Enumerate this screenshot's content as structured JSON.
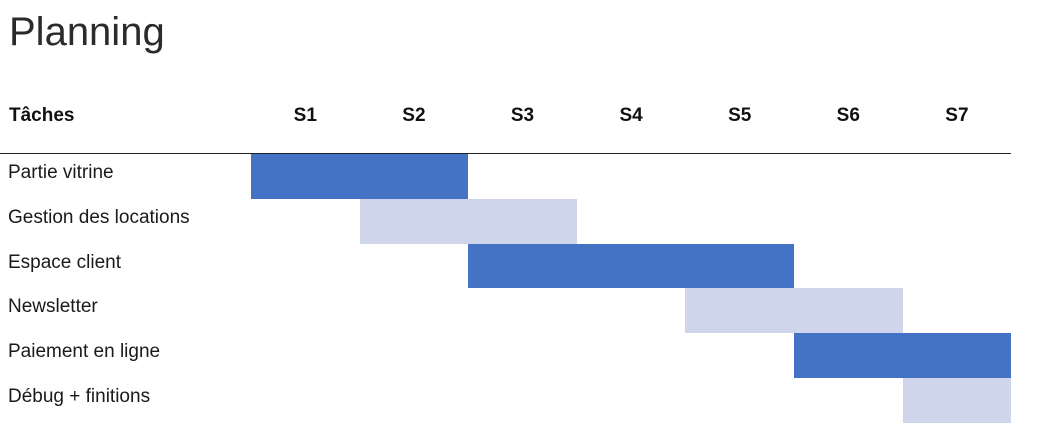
{
  "title": "Planning",
  "tasks_header": "Tâches",
  "chart_data": {
    "type": "bar",
    "title": "Planning",
    "weeks": [
      "S1",
      "S2",
      "S3",
      "S4",
      "S5",
      "S6",
      "S7"
    ],
    "tasks": [
      {
        "label": "Partie vitrine",
        "start": 1,
        "end": 2,
        "color": "#4472c4"
      },
      {
        "label": "Gestion des locations",
        "start": 2,
        "end": 3,
        "color": "#cfd5ea"
      },
      {
        "label": "Espace client",
        "start": 3,
        "end": 5,
        "color": "#4472c4"
      },
      {
        "label": "Newsletter",
        "start": 5,
        "end": 6,
        "color": "#cfd5ea"
      },
      {
        "label": "Paiement en ligne",
        "start": 6,
        "end": 7,
        "color": "#4472c4"
      },
      {
        "label": "Débug + finitions",
        "start": 7,
        "end": 7,
        "color": "#cfd5ea"
      }
    ]
  }
}
